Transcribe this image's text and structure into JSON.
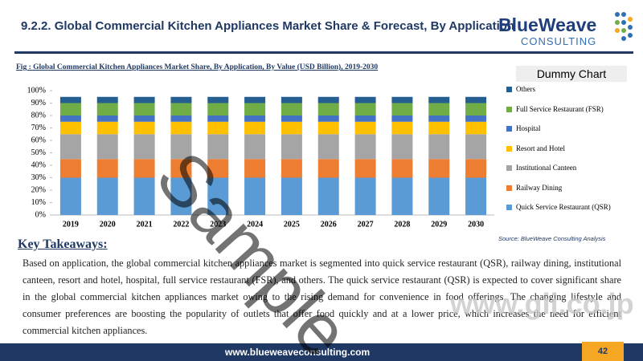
{
  "header": {
    "title": "9.2.2. Global Commercial Kitchen Appliances Market Share & Forecast, By Application"
  },
  "logo": {
    "name": "BlueWeave",
    "sub": "CONSULTING"
  },
  "chart_data": {
    "type": "stacked-bar",
    "caption": "Fig : Global Commercial Kitchen Appliances Market Share, By Application,  By Value (USD Billion), 2019-2030",
    "legend_title": "Dummy Chart",
    "categories": [
      "2019",
      "2020",
      "2021",
      "2022",
      "2023",
      "2024",
      "2025",
      "2026",
      "2027",
      "2028",
      "2029",
      "2030"
    ],
    "series": [
      {
        "name": "Quick Service Restaurant (QSR)",
        "color": "#5b9bd5",
        "values": [
          30,
          30,
          30,
          30,
          30,
          30,
          30,
          30,
          30,
          30,
          30,
          30
        ]
      },
      {
        "name": "Railway Dining",
        "color": "#ed7d31",
        "values": [
          15,
          15,
          15,
          15,
          15,
          15,
          15,
          15,
          15,
          15,
          15,
          15
        ]
      },
      {
        "name": "Institutional Canteen",
        "color": "#a5a5a5",
        "values": [
          20,
          20,
          20,
          20,
          20,
          20,
          20,
          20,
          20,
          20,
          20,
          20
        ]
      },
      {
        "name": "Resort and Hotel",
        "color": "#ffc000",
        "values": [
          10,
          10,
          10,
          10,
          10,
          10,
          10,
          10,
          10,
          10,
          10,
          10
        ]
      },
      {
        "name": "Hospital",
        "color": "#4472c4",
        "values": [
          5,
          5,
          5,
          5,
          5,
          5,
          5,
          5,
          5,
          5,
          5,
          5
        ]
      },
      {
        "name": "Full Service Restaurant (FSR)",
        "color": "#70ad47",
        "values": [
          10,
          10,
          10,
          10,
          10,
          10,
          10,
          10,
          10,
          10,
          10,
          10
        ]
      },
      {
        "name": "Others",
        "color": "#255e91",
        "values": [
          5,
          5,
          5,
          5,
          5,
          5,
          5,
          5,
          5,
          5,
          5,
          5
        ]
      }
    ],
    "ylim": [
      0,
      100
    ],
    "yticks": [
      {
        "value": 0,
        "label": "0%"
      },
      {
        "value": 10,
        "label": "10%"
      },
      {
        "value": 20,
        "label": "20%"
      },
      {
        "value": 30,
        "label": "30%"
      },
      {
        "value": 40,
        "label": "40%"
      },
      {
        "value": 50,
        "label": "50%"
      },
      {
        "value": 60,
        "label": "60%"
      },
      {
        "value": 70,
        "label": "70%"
      },
      {
        "value": 80,
        "label": "80%"
      },
      {
        "value": 90,
        "label": "90%"
      },
      {
        "value": 100,
        "label": "100%"
      }
    ],
    "source": "Source: BlueWeave Consulting Analysis"
  },
  "takeaways": {
    "heading": "Key Takeaways:",
    "text": "Based on application, the global commercial kitchen appliances market is segmented into quick service restaurant (QSR), railway dining, institutional canteen, resort and hotel, hospital, full service restaurant (FSR), and others. The quick service restaurant (QSR) is expected to cover significant share in the global commercial kitchen appliances market owing to the rising demand for convenience in food offerings. The changing lifestyle and consumer preferences are boosting the popularity of outlets that offer food quickly and at a lower price, which increases the need for efficient commercial kitchen appliances."
  },
  "footer": {
    "url": "www.blueweaveconsulting.com",
    "page": "42"
  },
  "watermarks": {
    "sample": "Sample",
    "site": "www.gii.co.jp"
  }
}
